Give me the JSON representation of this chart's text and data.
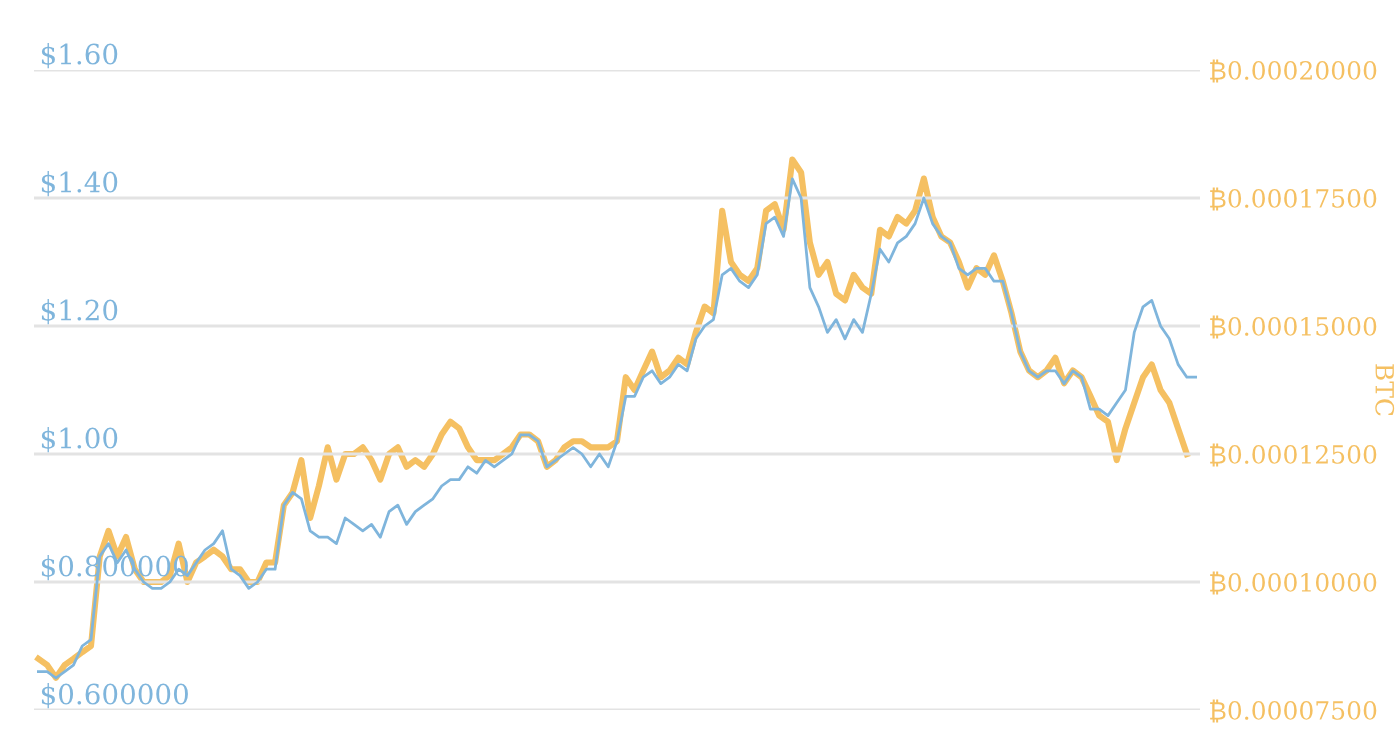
{
  "chart_data": {
    "type": "line",
    "y2label": "BTC",
    "grid": "y",
    "marker": "none",
    "line_style": "solid",
    "tick_labels": "y",
    "categories": [
      null,
      null,
      null,
      null,
      null,
      null,
      null,
      null,
      null,
      null,
      null,
      null,
      null,
      null,
      null,
      null,
      null,
      null,
      null,
      null,
      null,
      null,
      null,
      null,
      null,
      null,
      null,
      null,
      null,
      null,
      null,
      null,
      null,
      null,
      null,
      null,
      null,
      null,
      null,
      null,
      null,
      null,
      null,
      null,
      null,
      null,
      null,
      null,
      null,
      null,
      null,
      null,
      null,
      null,
      null,
      null,
      null,
      null,
      null,
      null,
      null,
      null,
      null,
      null,
      null,
      null,
      null,
      null,
      null,
      null,
      null,
      null,
      null,
      null,
      null,
      null,
      null,
      null,
      null,
      null,
      null,
      null,
      null,
      null,
      null,
      null,
      null,
      null,
      null,
      null,
      null,
      null,
      null,
      null,
      null,
      null,
      null,
      null,
      null,
      null,
      null,
      null,
      null,
      null,
      null,
      null,
      null,
      null,
      null,
      null,
      null,
      null,
      null,
      null,
      null,
      null,
      null,
      null,
      null,
      null,
      null,
      null,
      null,
      null,
      null,
      null,
      null,
      null,
      null,
      null,
      null,
      null,
      null
    ],
    "ylim": [
      0.6,
      1.6
    ],
    "yticks": [
      {
        "value": 0.6,
        "label": "$0.600000"
      },
      {
        "value": 0.8,
        "label": "$0.800000"
      },
      {
        "value": 1.0,
        "label": "$1.00"
      },
      {
        "value": 1.2,
        "label": "$1.20"
      },
      {
        "value": 1.4,
        "label": "$1.40"
      },
      {
        "value": 1.6,
        "label": "$1.60"
      }
    ],
    "y2lim": [
      7.5e-05,
      0.0002
    ],
    "y2ticks": [
      {
        "value": 7.5e-05,
        "label": "₿0.00007500"
      },
      {
        "value": 0.0001,
        "label": "₿0.00010000"
      },
      {
        "value": 0.000125,
        "label": "₿0.00012500"
      },
      {
        "value": 0.00015,
        "label": "₿0.00015000"
      },
      {
        "value": 0.000175,
        "label": "₿0.00017500"
      },
      {
        "value": 0.0002,
        "label": "₿0.00020000"
      }
    ],
    "series": [
      {
        "color": "#7fb5dc",
        "values": [
          0.66,
          0.66,
          0.65,
          0.66,
          0.67,
          0.7,
          0.71,
          0.84,
          0.86,
          0.83,
          0.85,
          0.82,
          0.8,
          0.79,
          0.79,
          0.8,
          0.82,
          0.81,
          0.83,
          0.85,
          0.86,
          0.88,
          0.82,
          0.81,
          0.79,
          0.8,
          0.82,
          0.82,
          0.92,
          0.94,
          0.93,
          0.88,
          0.87,
          0.87,
          0.86,
          0.9,
          0.89,
          0.88,
          0.89,
          0.87,
          0.91,
          0.92,
          0.89,
          0.91,
          0.92,
          0.93,
          0.95,
          0.96,
          0.96,
          0.98,
          0.97,
          0.99,
          0.98,
          0.99,
          1.0,
          1.03,
          1.03,
          1.02,
          0.98,
          0.99,
          1.0,
          1.01,
          1.0,
          0.98,
          1.0,
          0.98,
          1.02,
          1.09,
          1.09,
          1.12,
          1.13,
          1.11,
          1.12,
          1.14,
          1.13,
          1.18,
          1.2,
          1.21,
          1.28,
          1.29,
          1.27,
          1.26,
          1.28,
          1.36,
          1.37,
          1.34,
          1.43,
          1.4,
          1.26,
          1.23,
          1.19,
          1.21,
          1.18,
          1.21,
          1.19,
          1.25,
          1.32,
          1.3,
          1.33,
          1.34,
          1.36,
          1.4,
          1.36,
          1.34,
          1.33,
          1.29,
          1.28,
          1.29,
          1.29,
          1.27,
          1.27,
          1.22,
          1.16,
          1.13,
          1.12,
          1.13,
          1.13,
          1.11,
          1.13,
          1.12,
          1.07,
          1.07,
          1.06,
          1.08,
          1.1,
          1.19,
          1.23,
          1.24,
          1.2,
          1.18,
          1.14,
          1.12,
          1.12
        ]
      },
      {
        "color": "#f5c062",
        "axis": "y2",
        "values": [
          8.5e-05,
          8.38e-05,
          8.13e-05,
          8.38e-05,
          8.5e-05,
          8.63e-05,
          8.75e-05,
          0.000105,
          0.00011,
          0.000105,
          0.0001088,
          0.0001025,
          0.0001,
          0.0001,
          0.0001,
          0.0001013,
          0.0001075,
          0.0001,
          0.0001038,
          0.000105,
          0.0001063,
          0.000105,
          0.0001025,
          0.0001025,
          0.0001,
          0.0001,
          0.0001038,
          0.0001038,
          0.000115,
          0.0001175,
          0.0001238,
          0.0001125,
          0.0001188,
          0.0001263,
          0.00012,
          0.000125,
          0.000125,
          0.0001263,
          0.0001238,
          0.00012,
          0.000125,
          0.0001263,
          0.0001225,
          0.0001238,
          0.0001225,
          0.000125,
          0.0001288,
          0.0001313,
          0.00013,
          0.0001263,
          0.0001238,
          0.0001238,
          0.0001238,
          0.000125,
          0.0001263,
          0.0001288,
          0.0001288,
          0.0001275,
          0.0001225,
          0.0001238,
          0.0001263,
          0.0001275,
          0.0001275,
          0.0001263,
          0.0001263,
          0.0001263,
          0.0001275,
          0.00014,
          0.0001375,
          0.0001413,
          0.000145,
          0.00014,
          0.0001413,
          0.0001438,
          0.0001425,
          0.0001488,
          0.0001538,
          0.0001525,
          0.0001725,
          0.0001625,
          0.00016,
          0.0001588,
          0.0001613,
          0.0001725,
          0.0001738,
          0.0001688,
          0.0001825,
          0.00018,
          0.0001663,
          0.00016,
          0.0001625,
          0.0001563,
          0.000155,
          0.00016,
          0.0001575,
          0.0001563,
          0.0001688,
          0.0001675,
          0.0001713,
          0.00017,
          0.0001725,
          0.0001788,
          0.0001713,
          0.0001675,
          0.0001663,
          0.0001625,
          0.0001575,
          0.0001613,
          0.00016,
          0.0001638,
          0.0001588,
          0.0001525,
          0.000145,
          0.0001413,
          0.00014,
          0.0001413,
          0.0001438,
          0.0001388,
          0.0001413,
          0.00014,
          0.0001363,
          0.0001325,
          0.0001313,
          0.0001238,
          0.00013,
          0.000135,
          0.00014,
          0.0001425,
          0.0001375,
          0.000135,
          0.00013,
          0.000125,
          null
        ]
      }
    ]
  }
}
